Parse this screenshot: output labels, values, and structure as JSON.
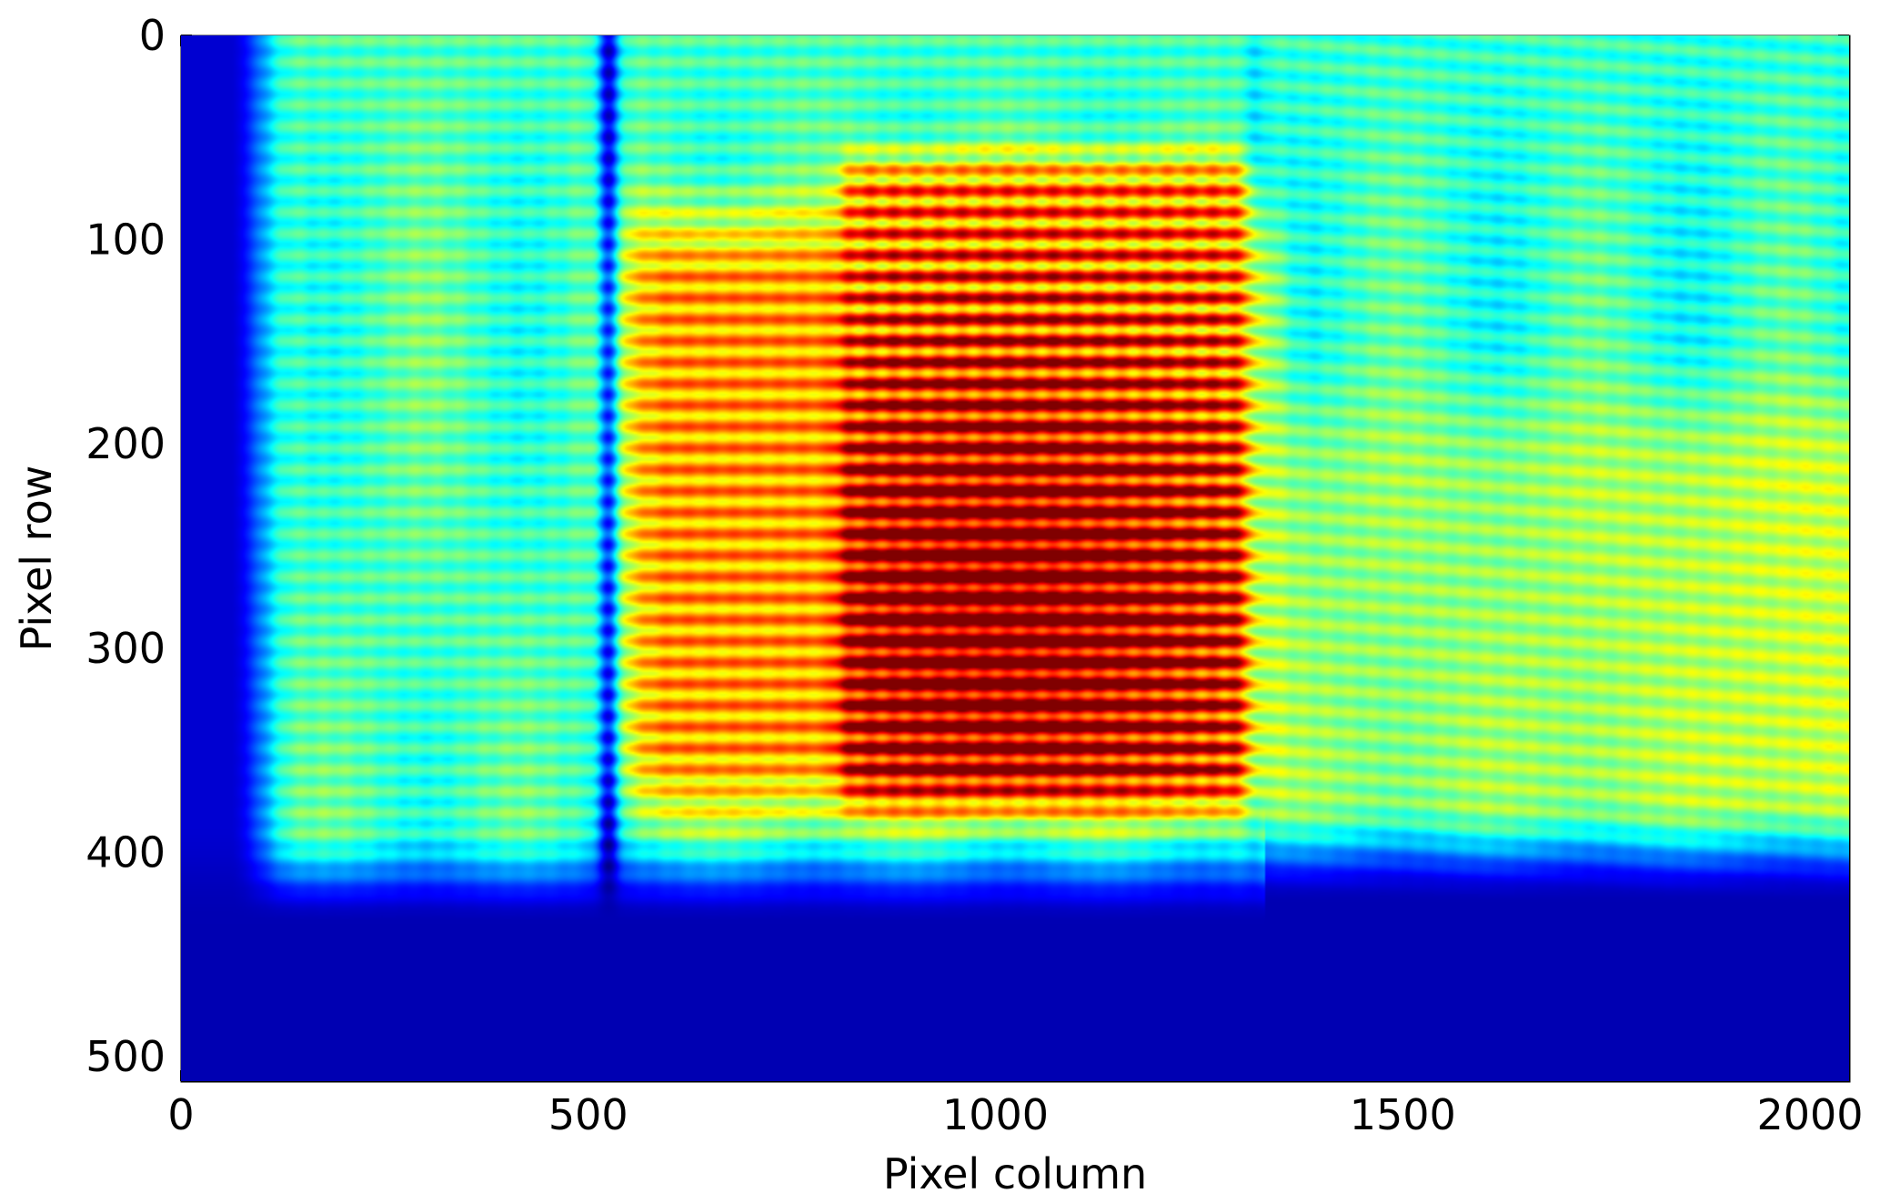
{
  "chart_data": {
    "type": "heatmap",
    "title": "",
    "xlabel": "Pixel column",
    "ylabel": "Pixel row",
    "xlim": [
      0,
      2048
    ],
    "ylim": [
      512,
      0
    ],
    "y_inverted": true,
    "x_ticks": [
      0,
      500,
      1000,
      1500,
      2000
    ],
    "y_ticks": [
      0,
      100,
      200,
      300,
      400,
      500
    ],
    "x_tick_labels": [
      "0",
      "500",
      "1000",
      "1500",
      "2000"
    ],
    "y_tick_labels": [
      "0",
      "100",
      "200",
      "300",
      "400",
      "500"
    ],
    "colormap": "jet",
    "colorbar": false,
    "grid": false,
    "legend": "none",
    "value_scale": "normalized 0-1 intensity",
    "features": {
      "hot_region": {
        "x_range": [
          810,
          1310
        ],
        "y_range": [
          60,
          375
        ],
        "peak_intensity": 1.0,
        "peak_center": [
          1000,
          285
        ]
      },
      "warm_halo": {
        "x_range": [
          540,
          1330
        ],
        "y_range": [
          90,
          380
        ],
        "intensity": 0.72
      },
      "right_warm_band": {
        "x_range": [
          1330,
          2048
        ],
        "y_range": [
          180,
          400
        ],
        "intensity": 0.6
      },
      "right_fringe_slope": {
        "x_range": [
          1310,
          2048
        ],
        "y_range": [
          0,
          420
        ],
        "line_spacing_rows": 10.5,
        "tilt_rows_per_column": -0.028
      },
      "fringe_line_spacing_rows": 10.5,
      "dark_column_band": {
        "x_range": [
          0,
          70
        ],
        "intensity": 0.08
      },
      "dark_column_line": {
        "x": 525,
        "width": 14,
        "intensity_drop": 0.35
      },
      "column_seam": {
        "x": 1320,
        "width": 10
      },
      "background_cutoff_row": 430,
      "below_cutoff_intensity": 0.05,
      "upper_right_intensity": 0.42,
      "upper_left_intensity": 0.45
    }
  }
}
